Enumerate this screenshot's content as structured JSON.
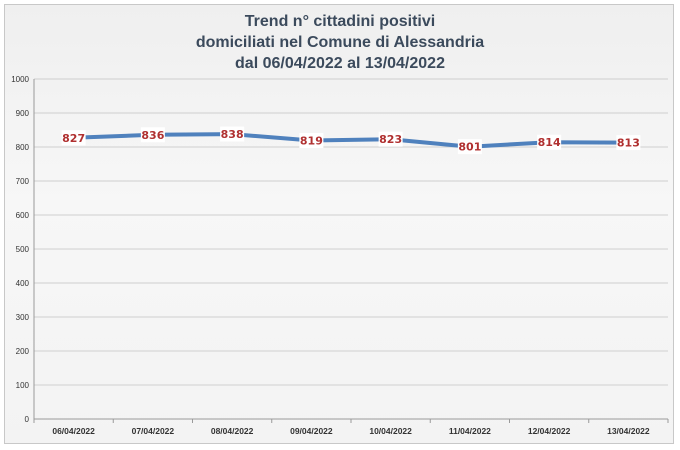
{
  "chart_data": {
    "type": "line",
    "title_lines": [
      "Trend n° cittadini positivi",
      "domiciliati nel Comune di Alessandria",
      "dal 06/04/2022 al 13/04/2022"
    ],
    "categories": [
      "06/04/2022",
      "07/04/2022",
      "08/04/2022",
      "09/04/2022",
      "10/04/2022",
      "11/04/2022",
      "12/04/2022",
      "13/04/2022"
    ],
    "series": [
      {
        "values": [
          827,
          836,
          838,
          819,
          823,
          801,
          814,
          813
        ]
      }
    ],
    "ylim": [
      0,
      1000
    ],
    "yticks": [
      0,
      100,
      200,
      300,
      400,
      500,
      600,
      700,
      800,
      900,
      1000
    ],
    "grid": true,
    "legend": "none",
    "data_labels": true,
    "colors": {
      "line": "#4f81bd",
      "label_text": "#b03030",
      "gridline": "#cfcfcf",
      "title": "#3b4a5c"
    }
  }
}
